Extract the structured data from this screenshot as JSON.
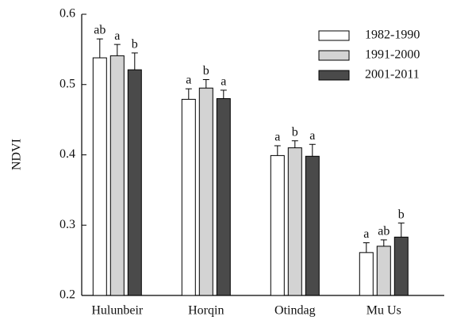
{
  "chart_data": {
    "type": "bar",
    "y_label": "NDVI",
    "categories": [
      "Hulunbeir",
      "Horqin",
      "Otindag",
      "Mu Us"
    ],
    "series": [
      {
        "name": "1982-1990",
        "color": "#ffffff",
        "values": [
          0.538,
          0.479,
          0.399,
          0.261
        ],
        "errors": [
          0.027,
          0.015,
          0.014,
          0.014
        ],
        "letters": [
          "ab",
          "a",
          "a",
          "a"
        ]
      },
      {
        "name": "1991-2000",
        "color": "#d3d3d3",
        "values": [
          0.541,
          0.495,
          0.41,
          0.27
        ],
        "errors": [
          0.016,
          0.012,
          0.01,
          0.009
        ],
        "letters": [
          "a",
          "b",
          "b",
          "ab"
        ]
      },
      {
        "name": "2001-2011",
        "color": "#4a4a4a",
        "values": [
          0.521,
          0.48,
          0.398,
          0.283
        ],
        "errors": [
          0.024,
          0.012,
          0.017,
          0.02
        ],
        "letters": [
          "b",
          "a",
          "a",
          "b"
        ]
      }
    ],
    "ylim": [
      0.2,
      0.6
    ],
    "yticks": [
      0.2,
      0.3,
      0.4,
      0.5,
      0.6
    ],
    "legend": "upper right"
  }
}
